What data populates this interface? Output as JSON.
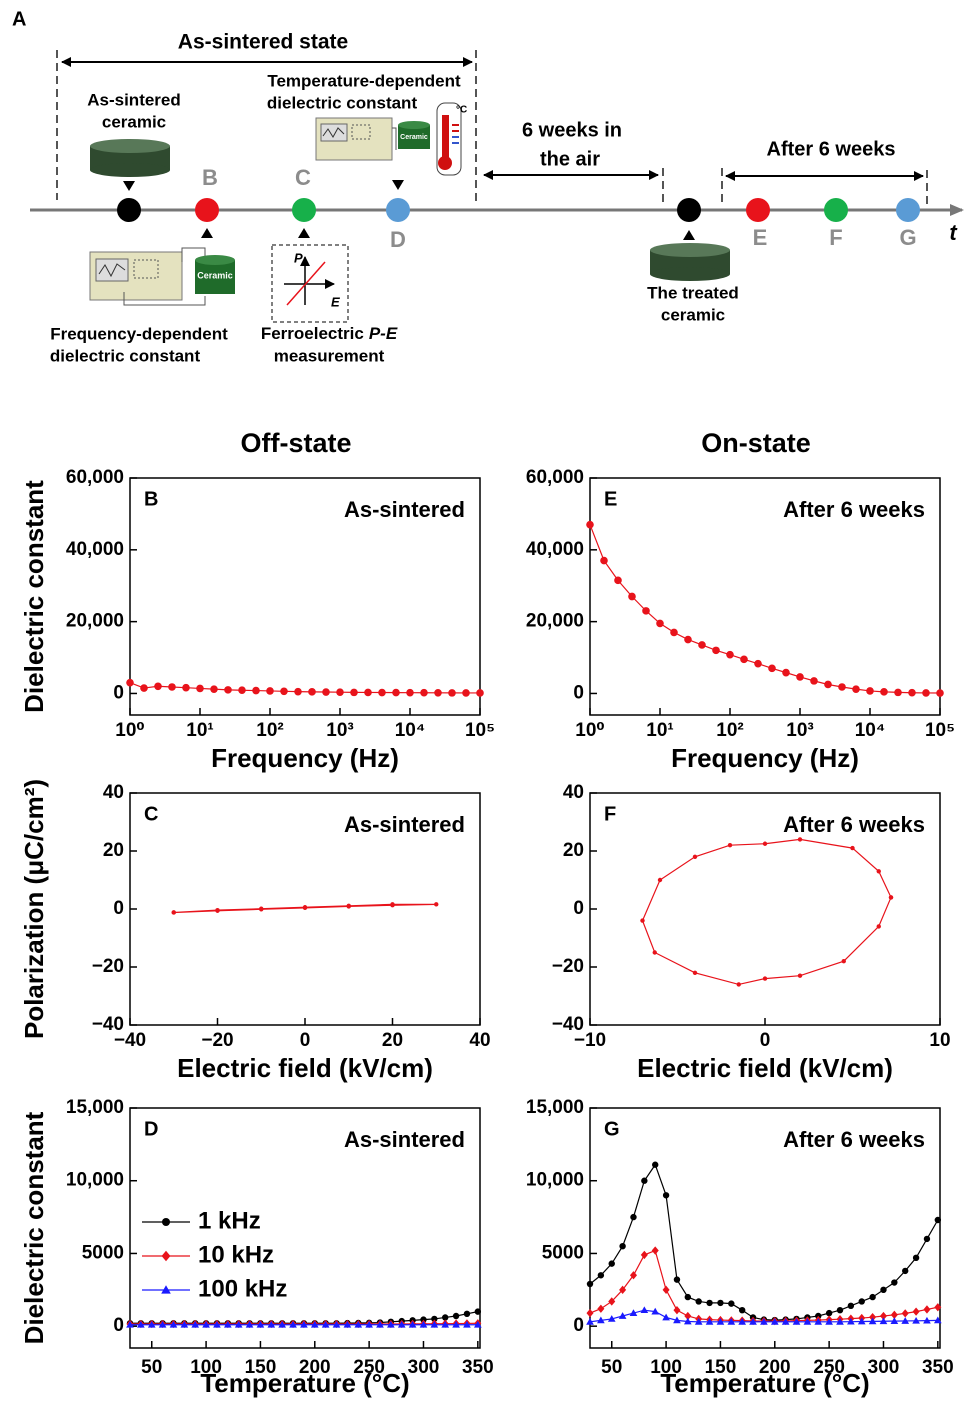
{
  "diagram": {
    "panel_label": "A",
    "as_sintered_state": "As-sintered state",
    "as_sintered_ceramic": [
      "As-sintered",
      "ceramic"
    ],
    "temperature_dependent": [
      "Temperature-dependent",
      "dielectric constant"
    ],
    "six_weeks": [
      "6 weeks in",
      "the air"
    ],
    "after_6_weeks": "After 6 weeks",
    "frequency_dependent": [
      "Frequency-dependent",
      "dielectric constant"
    ],
    "ferroelectric": [
      "Ferroelectric",
      "P-E",
      "measurement"
    ],
    "treated_ceramic": [
      "The treated",
      "ceramic"
    ],
    "stage_labels": [
      "B",
      "C",
      "D",
      "E",
      "F",
      "G"
    ],
    "time_axis": "t",
    "instrument_label": "Ceramic",
    "thermometer_unit": "°C",
    "pe_axes": [
      "P",
      "E"
    ]
  },
  "column_titles": [
    "Off-state",
    "On-state"
  ],
  "chart_data": [
    {
      "type": "line",
      "panel_label": "B",
      "annotation": "As-sintered",
      "x_label": "Frequency (Hz)",
      "y_label": "Dielectric constant",
      "x_scale": "log",
      "xlim": [
        1,
        100000
      ],
      "xticks": [
        {
          "value": 1,
          "label": "10⁰"
        },
        {
          "value": 10,
          "label": "10¹"
        },
        {
          "value": 100,
          "label": "10²"
        },
        {
          "value": 1000,
          "label": "10³"
        },
        {
          "value": 10000,
          "label": "10⁴"
        },
        {
          "value": 100000,
          "label": "10⁵"
        }
      ],
      "ylim": [
        -6000,
        60000
      ],
      "yticks": [
        0,
        {
          "value": 20000,
          "label": "20,000"
        },
        {
          "value": 40000,
          "label": "40,000"
        },
        {
          "value": 60000,
          "label": "60,000"
        }
      ],
      "x": [
        1,
        1.585,
        2.512,
        3.981,
        6.31,
        10,
        15.85,
        25.12,
        39.81,
        63.1,
        100,
        158.5,
        251.2,
        398.1,
        631,
        1000,
        1585,
        2512,
        3981,
        6310,
        10000,
        15850,
        25120,
        39810,
        63100,
        100000
      ],
      "series": [
        {
          "color": "#e8131b",
          "marker": "circle",
          "values": [
            3000,
            1500,
            2000,
            1800,
            1600,
            1400,
            1200,
            1000,
            900,
            800,
            700,
            600,
            500,
            450,
            400,
            350,
            300,
            280,
            260,
            240,
            220,
            200,
            180,
            160,
            150,
            140
          ]
        }
      ]
    },
    {
      "type": "line",
      "panel_label": "C",
      "annotation": "As-sintered",
      "x_label": "Electric field (kV/cm)",
      "y_label": "Polarization (μC/cm²)",
      "x_scale": "linear",
      "xlim": [
        -40,
        40
      ],
      "xticks": [
        {
          "value": -40,
          "label": "−40"
        },
        {
          "value": -20,
          "label": "−20"
        },
        0,
        20,
        40
      ],
      "ylim": [
        -40,
        40
      ],
      "yticks": [
        {
          "value": -40,
          "label": "−40"
        },
        {
          "value": -20,
          "label": "−20"
        },
        0,
        20,
        40
      ],
      "series": [
        {
          "color": "#e8131b",
          "marker": "circle",
          "x": [
            -30,
            -20,
            -10,
            0,
            10,
            20,
            30,
            20,
            10,
            0,
            -10,
            -20,
            -30
          ],
          "values": [
            -1.2,
            -0.6,
            -0.1,
            0.4,
            0.9,
            1.3,
            1.6,
            1.6,
            1.1,
            0.6,
            0.1,
            -0.4,
            -1.2
          ]
        }
      ]
    },
    {
      "type": "line",
      "panel_label": "D",
      "annotation": "As-sintered",
      "x_label": "Temperature (°C)",
      "y_label": "Dielectric constant",
      "x_scale": "linear",
      "xlim": [
        30,
        352
      ],
      "xticks": [
        50,
        100,
        150,
        200,
        250,
        300,
        350
      ],
      "ylim": [
        -1500,
        15000
      ],
      "yticks": [
        0,
        5000,
        {
          "value": 10000,
          "label": "10,000"
        },
        {
          "value": 15000,
          "label": "15,000"
        }
      ],
      "legend": true,
      "x": [
        30,
        40,
        50,
        60,
        70,
        80,
        90,
        100,
        110,
        120,
        130,
        140,
        150,
        160,
        170,
        180,
        190,
        200,
        210,
        220,
        230,
        240,
        250,
        260,
        270,
        280,
        290,
        300,
        310,
        320,
        330,
        340,
        350
      ],
      "series": [
        {
          "name": "1 kHz",
          "color": "#000000",
          "marker": "circle",
          "values": [
            200,
            200,
            200,
            200,
            200,
            200,
            200,
            200,
            200,
            200,
            200,
            200,
            200,
            200,
            200,
            200,
            200,
            200,
            200,
            200,
            210,
            220,
            230,
            250,
            300,
            350,
            400,
            450,
            500,
            600,
            700,
            850,
            1000
          ]
        },
        {
          "name": "10 kHz",
          "color": "#e8131b",
          "marker": "diamond",
          "values": [
            150,
            150,
            150,
            150,
            150,
            150,
            150,
            150,
            150,
            150,
            150,
            150,
            150,
            150,
            150,
            150,
            150,
            150,
            150,
            150,
            150,
            150,
            150,
            150,
            150,
            150,
            160,
            160,
            170,
            170,
            180,
            190,
            200
          ]
        },
        {
          "name": "100 kHz",
          "color": "#1a1aff",
          "marker": "triangle",
          "values": [
            100,
            100,
            100,
            100,
            100,
            100,
            100,
            100,
            100,
            100,
            100,
            100,
            100,
            100,
            100,
            100,
            100,
            100,
            100,
            100,
            100,
            100,
            100,
            100,
            100,
            100,
            100,
            100,
            100,
            100,
            100,
            100,
            100
          ]
        }
      ]
    },
    {
      "type": "line",
      "panel_label": "E",
      "annotation": "After 6 weeks",
      "x_label": "Frequency (Hz)",
      "x_scale": "log",
      "xlim": [
        1,
        100000
      ],
      "xticks": [
        {
          "value": 1,
          "label": "10⁰"
        },
        {
          "value": 10,
          "label": "10¹"
        },
        {
          "value": 100,
          "label": "10²"
        },
        {
          "value": 1000,
          "label": "10³"
        },
        {
          "value": 10000,
          "label": "10⁴"
        },
        {
          "value": 100000,
          "label": "10⁵"
        }
      ],
      "ylim": [
        -6000,
        60000
      ],
      "yticks": [
        0,
        {
          "value": 20000,
          "label": "20,000"
        },
        {
          "value": 40000,
          "label": "40,000"
        },
        {
          "value": 60000,
          "label": "60,000"
        }
      ],
      "x": [
        1,
        1.585,
        2.512,
        3.981,
        6.31,
        10,
        15.85,
        25.12,
        39.81,
        63.1,
        100,
        158.5,
        251.2,
        398.1,
        631,
        1000,
        1585,
        2512,
        3981,
        6310,
        10000,
        15850,
        25120,
        39810,
        63100,
        100000
      ],
      "series": [
        {
          "color": "#e8131b",
          "marker": "circle",
          "values": [
            47000,
            37000,
            31500,
            27000,
            23000,
            19500,
            17000,
            15000,
            13500,
            12000,
            10800,
            9500,
            8300,
            7000,
            5800,
            4600,
            3500,
            2500,
            1800,
            1200,
            700,
            450,
            300,
            200,
            150,
            120
          ]
        }
      ]
    },
    {
      "type": "line",
      "panel_label": "F",
      "annotation": "After 6 weeks",
      "x_label": "Electric field (kV/cm)",
      "x_scale": "linear",
      "xlim": [
        -10,
        10
      ],
      "xticks": [
        {
          "value": -10,
          "label": "−10"
        },
        0,
        10
      ],
      "ylim": [
        -40,
        40
      ],
      "yticks": [
        {
          "value": -40,
          "label": "−40"
        },
        {
          "value": -20,
          "label": "−20"
        },
        0,
        20,
        40
      ],
      "series": [
        {
          "color": "#e8131b",
          "marker": "circle",
          "x": [
            7.2,
            6.5,
            5,
            2,
            0,
            -2,
            -4,
            -6,
            -7,
            -6.3,
            -4,
            -1.5,
            0,
            2,
            4.5,
            6.5,
            7.2
          ],
          "values": [
            4,
            13,
            21,
            24,
            22.5,
            22,
            18,
            10,
            -4,
            -15,
            -22,
            -26,
            -24,
            -23,
            -18,
            -6,
            4
          ]
        }
      ]
    },
    {
      "type": "line",
      "panel_label": "G",
      "annotation": "After 6 weeks",
      "x_label": "Temperature (°C)",
      "x_scale": "linear",
      "xlim": [
        30,
        352
      ],
      "xticks": [
        50,
        100,
        150,
        200,
        250,
        300,
        350
      ],
      "ylim": [
        -1500,
        15000
      ],
      "yticks": [
        0,
        5000,
        {
          "value": 10000,
          "label": "10,000"
        },
        {
          "value": 15000,
          "label": "15,000"
        }
      ],
      "legend": false,
      "x": [
        30,
        40,
        50,
        60,
        70,
        80,
        90,
        100,
        110,
        120,
        130,
        140,
        150,
        160,
        170,
        180,
        190,
        200,
        210,
        220,
        230,
        240,
        250,
        260,
        270,
        280,
        290,
        300,
        310,
        320,
        330,
        340,
        350
      ],
      "series": [
        {
          "name": "1 kHz",
          "color": "#000000",
          "marker": "circle",
          "values": [
            2900,
            3500,
            4300,
            5500,
            7500,
            10000,
            11100,
            9000,
            3200,
            2000,
            1700,
            1600,
            1600,
            1550,
            1100,
            600,
            450,
            420,
            450,
            500,
            600,
            700,
            900,
            1100,
            1400,
            1700,
            2000,
            2500,
            3000,
            3800,
            4700,
            6000,
            7300
          ]
        },
        {
          "name": "10 kHz",
          "color": "#e8131b",
          "marker": "diamond",
          "values": [
            900,
            1200,
            1700,
            2500,
            3500,
            4900,
            5200,
            2500,
            1100,
            700,
            500,
            450,
            420,
            400,
            380,
            360,
            350,
            350,
            360,
            380,
            400,
            420,
            450,
            480,
            520,
            560,
            620,
            700,
            780,
            880,
            1000,
            1150,
            1300
          ]
        },
        {
          "name": "100 kHz",
          "color": "#1a1aff",
          "marker": "triangle",
          "values": [
            300,
            400,
            500,
            700,
            900,
            1100,
            1000,
            600,
            400,
            320,
            300,
            300,
            300,
            300,
            300,
            300,
            300,
            300,
            300,
            300,
            300,
            300,
            300,
            300,
            310,
            320,
            330,
            340,
            350,
            360,
            370,
            380,
            400
          ]
        }
      ]
    }
  ]
}
